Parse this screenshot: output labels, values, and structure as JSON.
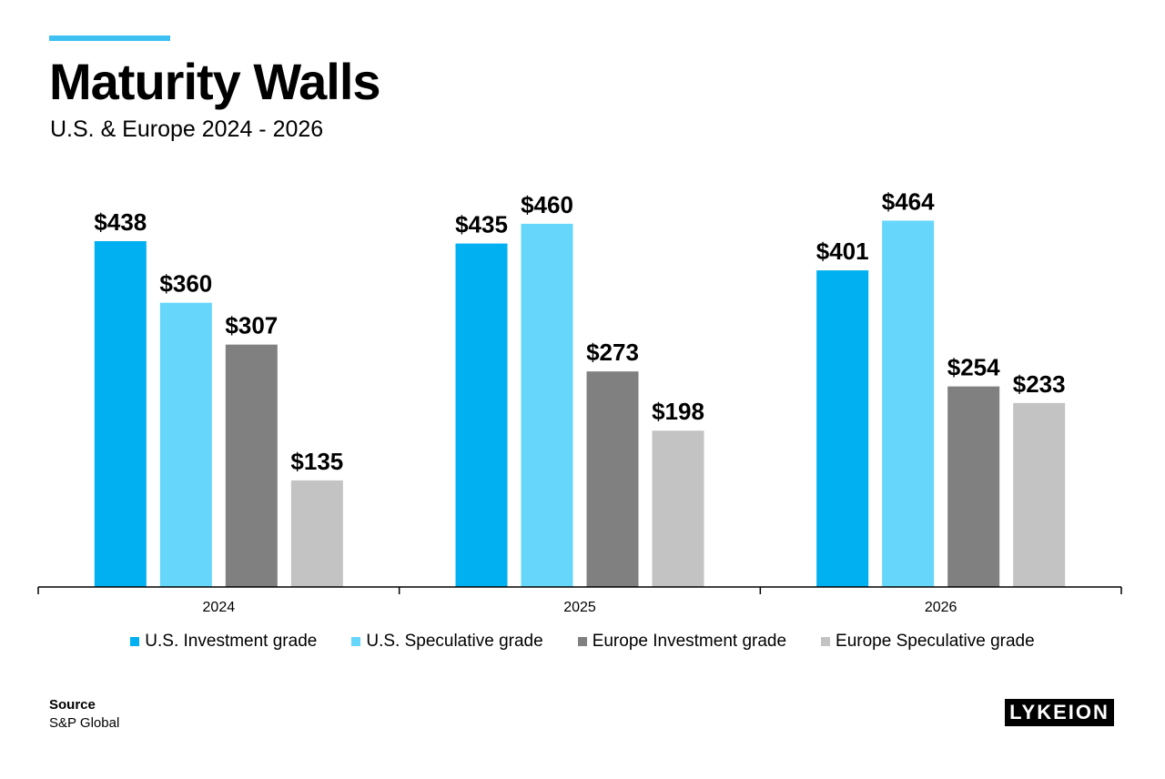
{
  "header": {
    "title": "Maturity Walls",
    "subtitle": "U.S. & Europe 2024 - 2026"
  },
  "colors": {
    "accent": "#3dc1f3"
  },
  "chart_data": {
    "type": "bar",
    "categories": [
      "2024",
      "2025",
      "2026"
    ],
    "series": [
      {
        "name": "U.S. Investment grade",
        "color": "#00b0f0",
        "values": [
          438,
          435,
          401
        ],
        "labels": [
          "$438",
          "$435",
          "$401"
        ]
      },
      {
        "name": "U.S. Speculative grade",
        "color": "#66d6fb",
        "values": [
          360,
          460,
          464
        ],
        "labels": [
          "$360",
          "$460",
          "$464"
        ]
      },
      {
        "name": "Europe Investment grade",
        "color": "#808080",
        "values": [
          307,
          273,
          254
        ],
        "labels": [
          "$307",
          "$273",
          "$254"
        ]
      },
      {
        "name": "Europe Speculative grade",
        "color": "#c3c3c3",
        "values": [
          135,
          198,
          233
        ],
        "labels": [
          "$135",
          "$198",
          "$233"
        ]
      }
    ],
    "ylim": [
      0,
      500
    ],
    "grid": false,
    "legend_position": "bottom"
  },
  "source": {
    "label": "Source",
    "value": "S&P Global"
  },
  "logo": {
    "text": "LYKEION"
  }
}
